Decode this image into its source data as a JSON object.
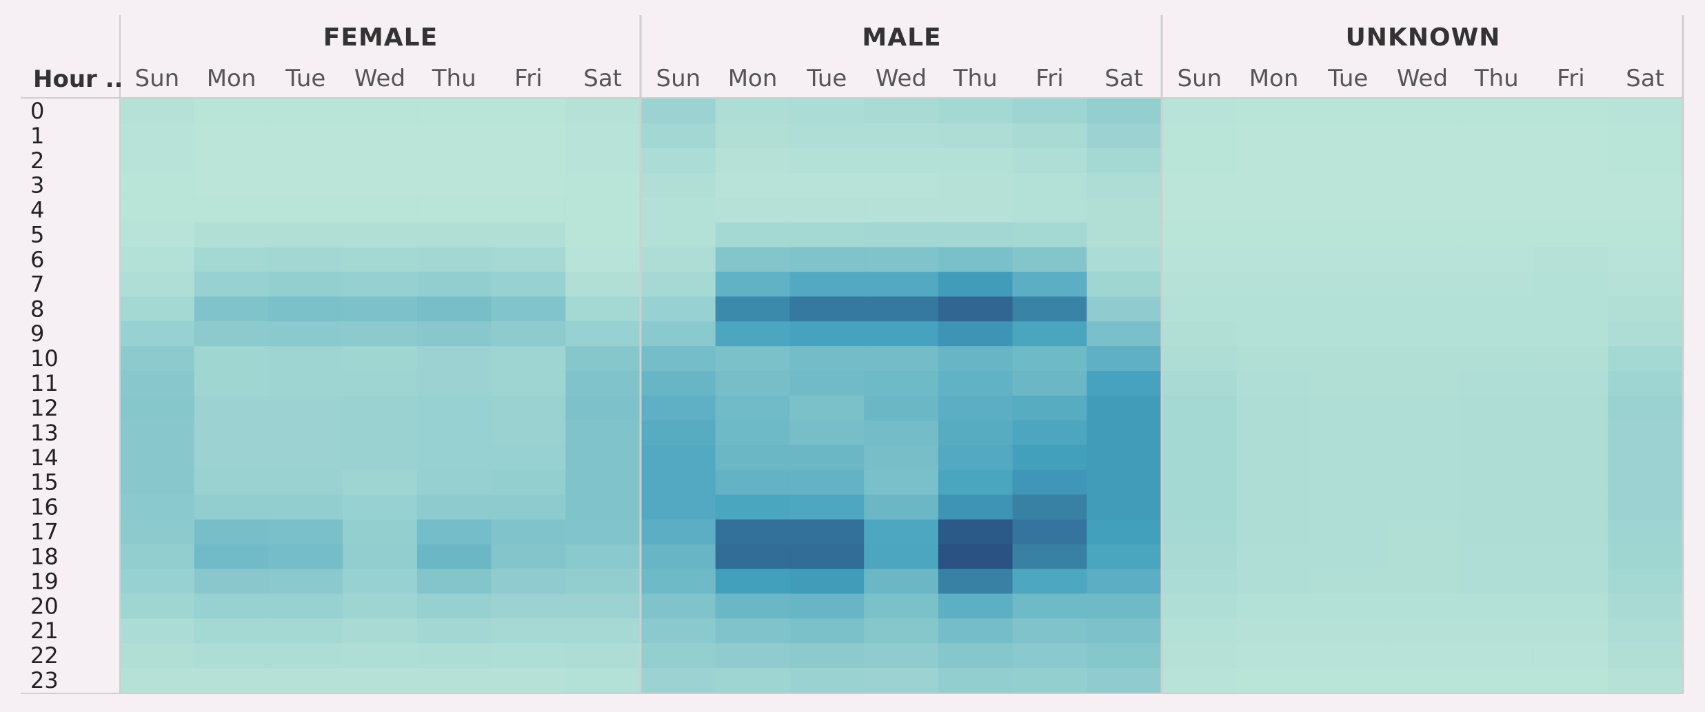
{
  "chart_data": {
    "type": "heatmap",
    "row_header": "Hour ..",
    "hours": [
      "0",
      "1",
      "2",
      "3",
      "4",
      "5",
      "6",
      "7",
      "8",
      "9",
      "10",
      "11",
      "12",
      "13",
      "14",
      "15",
      "16",
      "17",
      "18",
      "19",
      "20",
      "21",
      "22",
      "23"
    ],
    "days": [
      "Sun",
      "Mon",
      "Tue",
      "Wed",
      "Thu",
      "Fri",
      "Sat"
    ],
    "color_low": "#bde6d9",
    "color_mid": "#42a0bd",
    "color_high": "#2a5282",
    "groups": [
      {
        "name": "FEMALE",
        "values": [
          [
            0.04,
            0.02,
            0.02,
            0.02,
            0.02,
            0.02,
            0.04
          ],
          [
            0.03,
            0.01,
            0.01,
            0.01,
            0.01,
            0.01,
            0.03
          ],
          [
            0.03,
            0.01,
            0.01,
            0.01,
            0.01,
            0.01,
            0.03
          ],
          [
            0.02,
            0.01,
            0.01,
            0.01,
            0.01,
            0.01,
            0.02
          ],
          [
            0.02,
            0.02,
            0.02,
            0.02,
            0.02,
            0.02,
            0.02
          ],
          [
            0.03,
            0.06,
            0.06,
            0.06,
            0.06,
            0.06,
            0.02
          ],
          [
            0.05,
            0.12,
            0.13,
            0.12,
            0.13,
            0.11,
            0.03
          ],
          [
            0.07,
            0.18,
            0.2,
            0.19,
            0.21,
            0.18,
            0.06
          ],
          [
            0.12,
            0.3,
            0.32,
            0.31,
            0.34,
            0.29,
            0.12
          ],
          [
            0.18,
            0.24,
            0.25,
            0.24,
            0.26,
            0.23,
            0.18
          ],
          [
            0.24,
            0.14,
            0.15,
            0.14,
            0.16,
            0.15,
            0.27
          ],
          [
            0.26,
            0.14,
            0.15,
            0.15,
            0.16,
            0.15,
            0.3
          ],
          [
            0.27,
            0.16,
            0.16,
            0.17,
            0.18,
            0.17,
            0.31
          ],
          [
            0.26,
            0.16,
            0.16,
            0.17,
            0.18,
            0.17,
            0.3
          ],
          [
            0.26,
            0.16,
            0.16,
            0.17,
            0.18,
            0.18,
            0.3
          ],
          [
            0.26,
            0.17,
            0.17,
            0.15,
            0.19,
            0.2,
            0.3
          ],
          [
            0.25,
            0.21,
            0.21,
            0.18,
            0.23,
            0.23,
            0.3
          ],
          [
            0.24,
            0.34,
            0.33,
            0.2,
            0.35,
            0.3,
            0.29
          ],
          [
            0.21,
            0.37,
            0.35,
            0.21,
            0.4,
            0.28,
            0.25
          ],
          [
            0.18,
            0.26,
            0.25,
            0.18,
            0.28,
            0.22,
            0.21
          ],
          [
            0.14,
            0.18,
            0.18,
            0.15,
            0.19,
            0.16,
            0.16
          ],
          [
            0.09,
            0.12,
            0.12,
            0.1,
            0.13,
            0.11,
            0.11
          ],
          [
            0.06,
            0.08,
            0.08,
            0.07,
            0.08,
            0.07,
            0.08
          ],
          [
            0.04,
            0.04,
            0.04,
            0.04,
            0.04,
            0.04,
            0.05
          ]
        ]
      },
      {
        "name": "MALE",
        "values": [
          [
            0.16,
            0.08,
            0.09,
            0.1,
            0.12,
            0.15,
            0.2
          ],
          [
            0.13,
            0.06,
            0.07,
            0.07,
            0.08,
            0.1,
            0.16
          ],
          [
            0.09,
            0.04,
            0.05,
            0.05,
            0.05,
            0.07,
            0.12
          ],
          [
            0.06,
            0.03,
            0.03,
            0.03,
            0.04,
            0.05,
            0.08
          ],
          [
            0.05,
            0.04,
            0.04,
            0.04,
            0.04,
            0.05,
            0.06
          ],
          [
            0.05,
            0.12,
            0.12,
            0.13,
            0.13,
            0.12,
            0.06
          ],
          [
            0.08,
            0.28,
            0.3,
            0.3,
            0.33,
            0.28,
            0.09
          ],
          [
            0.11,
            0.45,
            0.52,
            0.52,
            0.62,
            0.48,
            0.14
          ],
          [
            0.18,
            0.72,
            0.8,
            0.8,
            0.9,
            0.75,
            0.22
          ],
          [
            0.25,
            0.55,
            0.58,
            0.58,
            0.66,
            0.56,
            0.33
          ],
          [
            0.35,
            0.32,
            0.36,
            0.36,
            0.42,
            0.38,
            0.46
          ],
          [
            0.42,
            0.34,
            0.37,
            0.38,
            0.45,
            0.4,
            0.58
          ],
          [
            0.46,
            0.37,
            0.32,
            0.4,
            0.48,
            0.5,
            0.62
          ],
          [
            0.5,
            0.38,
            0.34,
            0.36,
            0.5,
            0.55,
            0.62
          ],
          [
            0.52,
            0.4,
            0.4,
            0.34,
            0.52,
            0.6,
            0.62
          ],
          [
            0.52,
            0.44,
            0.44,
            0.33,
            0.56,
            0.65,
            0.62
          ],
          [
            0.52,
            0.56,
            0.54,
            0.4,
            0.66,
            0.76,
            0.62
          ],
          [
            0.48,
            0.84,
            0.84,
            0.54,
            0.96,
            0.82,
            0.6
          ],
          [
            0.42,
            0.86,
            0.86,
            0.55,
            1.0,
            0.76,
            0.56
          ],
          [
            0.38,
            0.6,
            0.62,
            0.4,
            0.76,
            0.54,
            0.48
          ],
          [
            0.3,
            0.4,
            0.42,
            0.32,
            0.47,
            0.38,
            0.38
          ],
          [
            0.25,
            0.3,
            0.32,
            0.27,
            0.35,
            0.3,
            0.31
          ],
          [
            0.2,
            0.22,
            0.24,
            0.22,
            0.27,
            0.25,
            0.27
          ],
          [
            0.16,
            0.15,
            0.17,
            0.16,
            0.21,
            0.2,
            0.22
          ]
        ]
      },
      {
        "name": "UNKNOWN",
        "values": [
          [
            0.03,
            0.02,
            0.02,
            0.02,
            0.02,
            0.02,
            0.03
          ],
          [
            0.02,
            0.01,
            0.01,
            0.01,
            0.01,
            0.01,
            0.02
          ],
          [
            0.02,
            0.01,
            0.01,
            0.01,
            0.01,
            0.01,
            0.02
          ],
          [
            0.01,
            0.01,
            0.01,
            0.01,
            0.01,
            0.01,
            0.01
          ],
          [
            0.01,
            0.01,
            0.01,
            0.01,
            0.01,
            0.01,
            0.01
          ],
          [
            0.02,
            0.02,
            0.02,
            0.02,
            0.02,
            0.02,
            0.02
          ],
          [
            0.03,
            0.03,
            0.03,
            0.03,
            0.03,
            0.04,
            0.03
          ],
          [
            0.04,
            0.04,
            0.04,
            0.04,
            0.04,
            0.05,
            0.04
          ],
          [
            0.05,
            0.05,
            0.05,
            0.05,
            0.05,
            0.05,
            0.06
          ],
          [
            0.06,
            0.05,
            0.05,
            0.05,
            0.05,
            0.05,
            0.08
          ],
          [
            0.08,
            0.06,
            0.06,
            0.06,
            0.06,
            0.06,
            0.12
          ],
          [
            0.1,
            0.07,
            0.06,
            0.06,
            0.07,
            0.07,
            0.15
          ],
          [
            0.12,
            0.08,
            0.07,
            0.07,
            0.08,
            0.08,
            0.17
          ],
          [
            0.12,
            0.08,
            0.07,
            0.07,
            0.08,
            0.08,
            0.16
          ],
          [
            0.12,
            0.08,
            0.07,
            0.07,
            0.08,
            0.08,
            0.16
          ],
          [
            0.12,
            0.08,
            0.07,
            0.07,
            0.08,
            0.08,
            0.16
          ],
          [
            0.12,
            0.08,
            0.07,
            0.07,
            0.08,
            0.08,
            0.16
          ],
          [
            0.11,
            0.08,
            0.07,
            0.06,
            0.08,
            0.08,
            0.15
          ],
          [
            0.1,
            0.07,
            0.07,
            0.06,
            0.07,
            0.07,
            0.14
          ],
          [
            0.09,
            0.07,
            0.06,
            0.06,
            0.07,
            0.07,
            0.12
          ],
          [
            0.07,
            0.05,
            0.05,
            0.05,
            0.05,
            0.05,
            0.1
          ],
          [
            0.05,
            0.04,
            0.04,
            0.04,
            0.04,
            0.04,
            0.08
          ],
          [
            0.04,
            0.03,
            0.03,
            0.03,
            0.03,
            0.03,
            0.06
          ],
          [
            0.03,
            0.02,
            0.02,
            0.02,
            0.02,
            0.02,
            0.04
          ]
        ]
      }
    ]
  }
}
